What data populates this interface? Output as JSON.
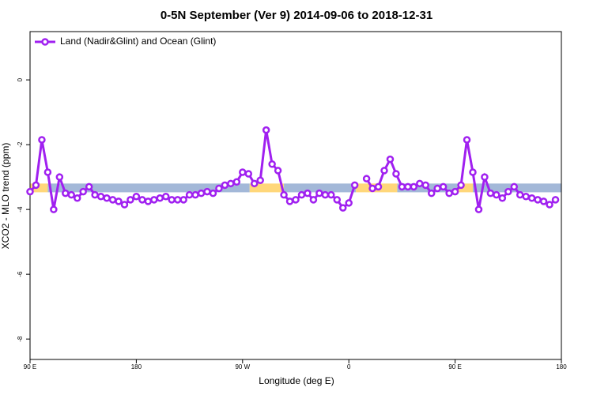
{
  "chart_data": {
    "type": "line",
    "title": "0-5N September (Ver 9)   2014-09-06 to 2018-12-31",
    "x_label": "Longitude (deg E)",
    "y_label": "XCO2 - MLO trend (ppm)",
    "xlim": [
      90,
      540
    ],
    "ylim": [
      -8.63,
      1.49
    ],
    "xticks": [
      {
        "value": 90,
        "label": "90 E"
      },
      180,
      {
        "value": 270,
        "label": "90 W"
      },
      {
        "value": 360,
        "label": "0"
      },
      {
        "value": 450,
        "label": "90 E"
      },
      {
        "value": 540,
        "label": "180"
      }
    ],
    "yticks": [
      0,
      -2,
      -4,
      -6,
      -8
    ],
    "legend_position": "top-left",
    "band": {
      "ylim": [
        -3.47,
        -3.2
      ],
      "segments": [
        {
          "x": [
            90,
            105
          ],
          "color": "#ffd77a"
        },
        {
          "x": [
            105,
            276
          ],
          "color": "#a3b8d8"
        },
        {
          "x": [
            276,
            305
          ],
          "color": "#ffd77a"
        },
        {
          "x": [
            305,
            366
          ],
          "color": "#a3b8d8"
        },
        {
          "x": [
            366,
            401
          ],
          "color": "#ffd77a"
        },
        {
          "x": [
            401,
            452
          ],
          "color": "#a3b8d8"
        },
        {
          "x": [
            452,
            465
          ],
          "color": "#ffd77a"
        },
        {
          "x": [
            465,
            540
          ],
          "color": "#a3b8d8"
        }
      ]
    },
    "x": [
      90,
      95,
      100,
      105,
      110,
      115,
      120,
      125,
      130,
      135,
      140,
      145,
      150,
      155,
      160,
      165,
      170,
      175,
      180,
      185,
      190,
      195,
      200,
      205,
      210,
      215,
      220,
      225,
      230,
      235,
      240,
      245,
      250,
      255,
      260,
      265,
      270,
      275,
      280,
      285,
      290,
      295,
      300,
      305,
      310,
      315,
      320,
      325,
      330,
      335,
      340,
      345,
      350,
      355,
      360,
      365,
      370,
      375,
      380,
      385,
      390,
      395,
      400,
      405,
      410,
      415,
      420,
      425,
      430,
      435,
      440,
      445,
      450,
      455,
      460,
      465,
      470,
      475,
      480,
      485,
      490,
      495,
      500,
      505,
      510,
      515,
      520,
      525,
      530,
      535
    ],
    "series": [
      {
        "name": "Land (Nadir&Glint) and Ocean (Glint)",
        "color": "#a020f0",
        "values": [
          -3.45,
          -3.25,
          -1.85,
          -2.85,
          -4.0,
          -3.0,
          -3.5,
          -3.55,
          -3.65,
          -3.45,
          -3.3,
          -3.55,
          -3.6,
          -3.65,
          -3.7,
          -3.75,
          -3.85,
          -3.7,
          -3.6,
          -3.7,
          -3.75,
          -3.7,
          -3.65,
          -3.6,
          -3.7,
          -3.7,
          -3.7,
          -3.55,
          -3.55,
          -3.5,
          -3.45,
          -3.5,
          -3.35,
          -3.25,
          -3.2,
          -3.15,
          -2.85,
          -2.9,
          -3.2,
          -3.1,
          -1.55,
          -2.6,
          -2.8,
          -3.55,
          -3.75,
          -3.7,
          -3.55,
          -3.5,
          -3.7,
          -3.5,
          -3.55,
          -3.55,
          -3.7,
          -3.95,
          -3.8,
          -3.25,
          null,
          -3.05,
          -3.35,
          -3.3,
          -2.8,
          -2.45,
          -2.9,
          -3.3,
          -3.3,
          -3.3,
          -3.2,
          -3.25,
          -3.5,
          -3.35,
          -3.3,
          -3.5,
          -3.45,
          -3.25,
          -1.85,
          -2.85,
          -4.0,
          -3.0,
          -3.5,
          -3.55,
          -3.65,
          -3.45,
          -3.3,
          -3.55,
          -3.6,
          -3.65,
          -3.7,
          -3.75,
          -3.85,
          -3.7
        ]
      }
    ]
  }
}
